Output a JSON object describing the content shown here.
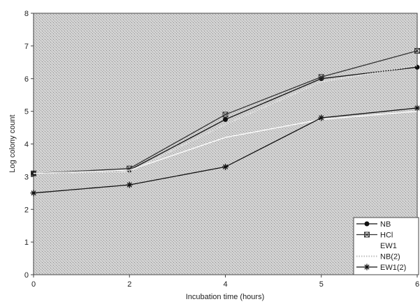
{
  "chart_data": {
    "type": "line",
    "title": "",
    "xlabel": "Incubation time (hours)",
    "ylabel": "Log colony count",
    "x_ticks": [
      "0",
      "2",
      "4",
      "5",
      "6"
    ],
    "y_ticks": [
      "0",
      "1",
      "2",
      "3",
      "4",
      "5",
      "6",
      "7",
      "8"
    ],
    "ylim": [
      0,
      8
    ],
    "grid": false,
    "legend_position": "bottom-right",
    "series": [
      {
        "name": "NB",
        "marker": "circle",
        "color": "#111111",
        "line": "solid",
        "points": [
          {
            "x": 0,
            "y": 3.1
          },
          {
            "x": 2,
            "y": 3.2
          },
          {
            "x": 4,
            "y": 4.75
          },
          {
            "x": 5,
            "y": 6.0
          },
          {
            "x": 6,
            "y": 6.35
          }
        ]
      },
      {
        "name": "HCl",
        "marker": "square-x",
        "color": "#333333",
        "line": "solid",
        "points": [
          {
            "x": 0,
            "y": 3.1
          },
          {
            "x": 2,
            "y": 3.25
          },
          {
            "x": 4,
            "y": 4.9
          },
          {
            "x": 5,
            "y": 6.05
          },
          {
            "x": 6,
            "y": 6.85
          }
        ]
      },
      {
        "name": "EW1",
        "marker": "none",
        "color": "#ffffff",
        "line": "solid",
        "points": [
          {
            "x": 0,
            "y": 3.1
          },
          {
            "x": 2,
            "y": 3.2
          },
          {
            "x": 4,
            "y": 4.2
          },
          {
            "x": 5,
            "y": 4.75
          },
          {
            "x": 6,
            "y": 5.0
          }
        ]
      },
      {
        "name": "NB(2)",
        "marker": "none",
        "color": "#e6e6e6",
        "line": "dotted",
        "points": [
          {
            "x": 0,
            "y": 3.1
          },
          {
            "x": 2,
            "y": 3.15
          },
          {
            "x": 4,
            "y": 4.6
          },
          {
            "x": 5,
            "y": 5.9
          },
          {
            "x": 6,
            "y": 6.4
          }
        ]
      },
      {
        "name": "EW1(2)",
        "marker": "asterisk",
        "color": "#111111",
        "line": "solid",
        "points": [
          {
            "x": 0,
            "y": 2.5
          },
          {
            "x": 2,
            "y": 2.75
          },
          {
            "x": 4,
            "y": 3.3
          },
          {
            "x": 5,
            "y": 4.8
          },
          {
            "x": 6,
            "y": 5.1
          }
        ]
      }
    ]
  }
}
